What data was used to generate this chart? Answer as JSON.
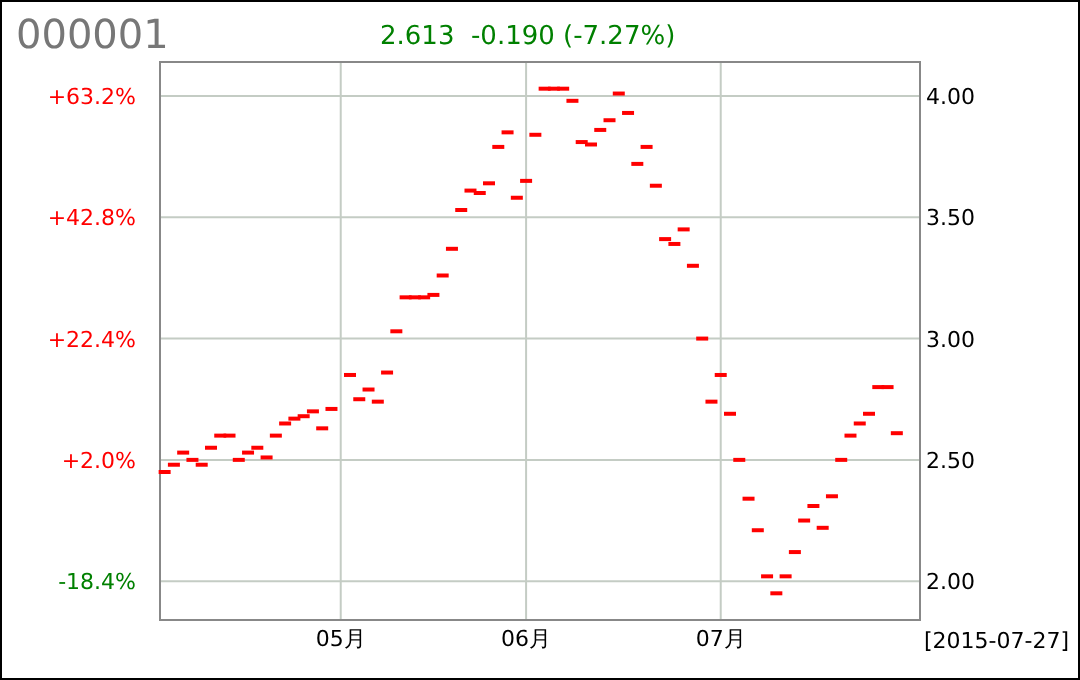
{
  "chart_data": {
    "type": "scatter",
    "title": "000001",
    "subtitle": "2.613  -0.190 (-7.27%)",
    "annotations": [
      "[2015-07-27]"
    ],
    "grid": true,
    "categories": [
      null,
      null,
      null,
      null,
      null,
      null,
      null,
      null,
      null,
      null,
      null,
      null,
      null,
      null,
      null,
      null,
      null,
      null,
      null,
      "05月",
      null,
      null,
      null,
      null,
      null,
      null,
      null,
      null,
      null,
      null,
      null,
      null,
      null,
      null,
      null,
      null,
      null,
      null,
      null,
      "06月",
      null,
      null,
      null,
      null,
      null,
      null,
      null,
      null,
      null,
      null,
      null,
      null,
      null,
      null,
      null,
      null,
      null,
      null,
      null,
      null,
      "07月",
      null,
      null,
      null,
      null,
      null,
      null,
      null,
      null,
      null,
      null,
      null,
      null,
      null,
      null,
      null,
      null,
      null,
      null,
      null,
      null,
      null
    ],
    "y2lim": [
      -24.9,
      68.9
    ],
    "y2ticks": [
      {
        "value": -18.4,
        "label": "-18.4%"
      },
      {
        "value": 2.0,
        "label": "+2.0%"
      },
      {
        "value": 22.4,
        "label": "+22.4%"
      },
      {
        "value": 42.8,
        "label": "+42.8%"
      },
      {
        "value": 63.2,
        "label": "+63.2%"
      }
    ],
    "ylim": [
      1.84,
      4.14
    ],
    "yticks": [
      {
        "value": 2,
        "label": "2.00"
      },
      {
        "value": 2.5,
        "label": "2.50"
      },
      {
        "value": 3,
        "label": "3.00"
      },
      {
        "value": 3.5,
        "label": "3.50"
      },
      {
        "value": 4,
        "label": "4.00"
      }
    ],
    "series": [
      {
        "color": "#ff0000",
        "values": [
          2.45,
          2.48,
          2.53,
          2.5,
          2.48,
          2.55,
          2.6,
          2.6,
          2.5,
          2.53,
          2.55,
          2.51,
          2.6,
          2.65,
          2.67,
          2.68,
          2.7,
          2.63,
          2.71,
          null,
          2.85,
          2.75,
          2.79,
          2.74,
          2.86,
          3.03,
          3.17,
          3.17,
          3.17,
          3.18,
          3.26,
          3.37,
          3.53,
          3.61,
          3.6,
          3.64,
          3.79,
          3.85,
          3.58,
          3.65,
          3.84,
          4.03,
          4.03,
          4.03,
          3.98,
          3.81,
          3.8,
          3.86,
          3.9,
          4.01,
          3.93,
          3.72,
          3.79,
          3.63,
          3.41,
          3.39,
          3.45,
          3.3,
          3.0,
          2.74,
          2.85,
          2.69,
          2.5,
          2.34,
          2.21,
          2.02,
          1.95,
          2.02,
          2.12,
          2.25,
          2.31,
          2.22,
          2.35,
          2.5,
          2.6,
          2.65,
          2.69,
          2.8,
          2.8,
          2.61,
          null,
          null
        ]
      }
    ]
  }
}
